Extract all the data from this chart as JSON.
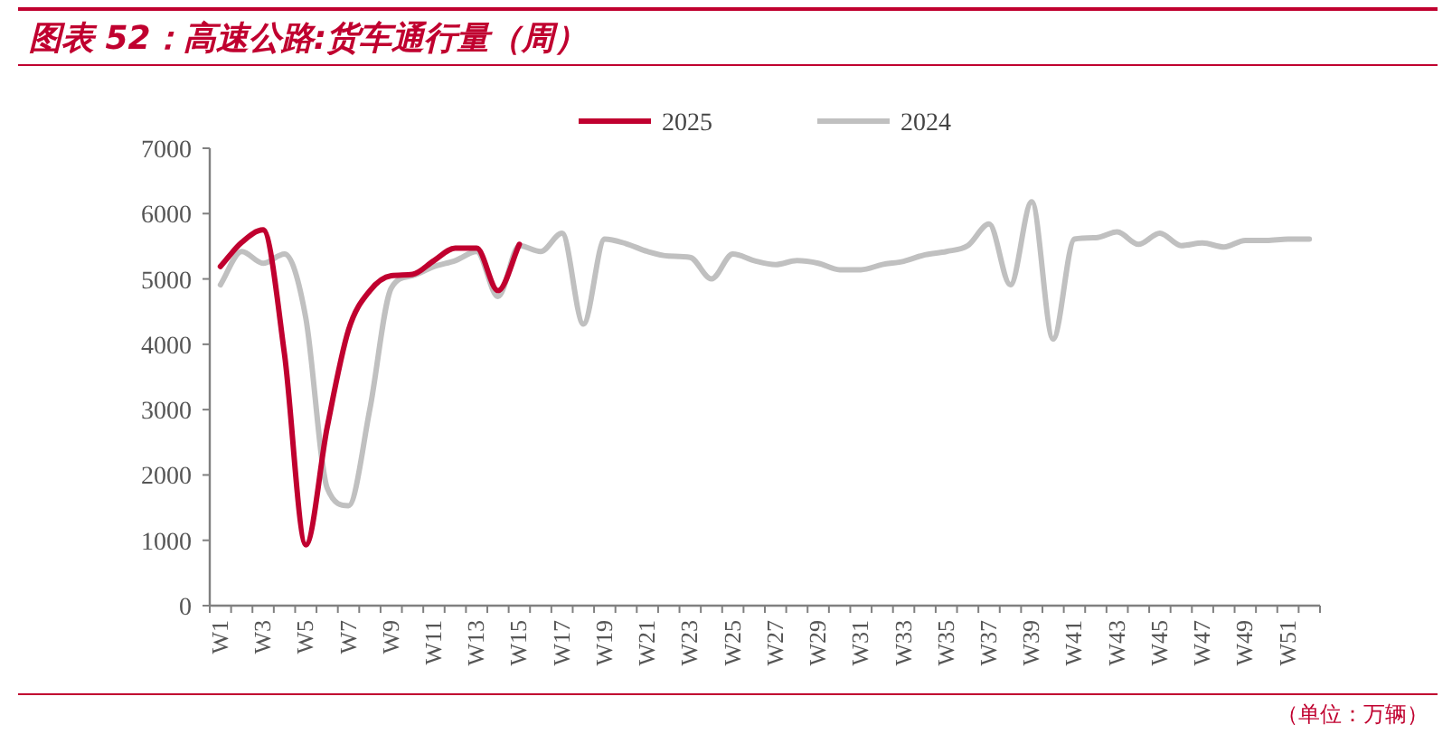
{
  "chart_data": {
    "type": "line",
    "title": "图表 52：高速公路:货车通行量（周）",
    "annotations": [
      "（单位：万辆）"
    ],
    "categories": [
      "W1",
      null,
      "W3",
      null,
      "W5",
      null,
      "W7",
      null,
      "W9",
      null,
      "W11",
      null,
      "W13",
      null,
      "W15",
      null,
      "W17",
      null,
      "W19",
      null,
      "W21",
      null,
      "W23",
      null,
      "W25",
      null,
      "W27",
      null,
      "W29",
      null,
      "W31",
      null,
      "W33",
      null,
      "W35",
      null,
      "W37",
      null,
      "W39",
      null,
      "W41",
      null,
      "W43",
      null,
      "W45",
      null,
      "W47",
      null,
      "W49",
      null,
      "W51",
      null
    ],
    "series": [
      {
        "name": "2025",
        "color": "#c0002f",
        "values": [
          5190,
          5560,
          5750,
          3850,
          930,
          2730,
          4220,
          4820,
          5050,
          5070,
          5280,
          5470,
          5470,
          4820,
          5530,
          null,
          null,
          null,
          null,
          null,
          null,
          null,
          null,
          null,
          null,
          null,
          null,
          null,
          null,
          null,
          null,
          null,
          null,
          null,
          null,
          null,
          null,
          null,
          null,
          null,
          null,
          null,
          null,
          null,
          null,
          null,
          null,
          null,
          null,
          null,
          null,
          null
        ]
      },
      {
        "name": "2024",
        "color": "#c0c0c0",
        "values": [
          4910,
          5420,
          5240,
          5380,
          4400,
          1800,
          1530,
          3010,
          4860,
          5050,
          5190,
          5280,
          5420,
          4730,
          5510,
          5420,
          5700,
          4310,
          5610,
          5540,
          5420,
          5350,
          5330,
          5000,
          5380,
          5280,
          5220,
          5280,
          5240,
          5140,
          5140,
          5220,
          5270,
          5370,
          5420,
          5510,
          5840,
          4910,
          6180,
          4080,
          5610,
          5630,
          5720,
          5530,
          5700,
          5510,
          5550,
          5490,
          5590,
          5590,
          5610,
          5610
        ]
      }
    ],
    "ylim": [
      0,
      7000
    ],
    "yticks": [
      0,
      1000,
      2000,
      3000,
      4000,
      5000,
      6000,
      7000
    ],
    "grid": false,
    "legend": "top",
    "marker": "none",
    "line_style": "solid"
  }
}
